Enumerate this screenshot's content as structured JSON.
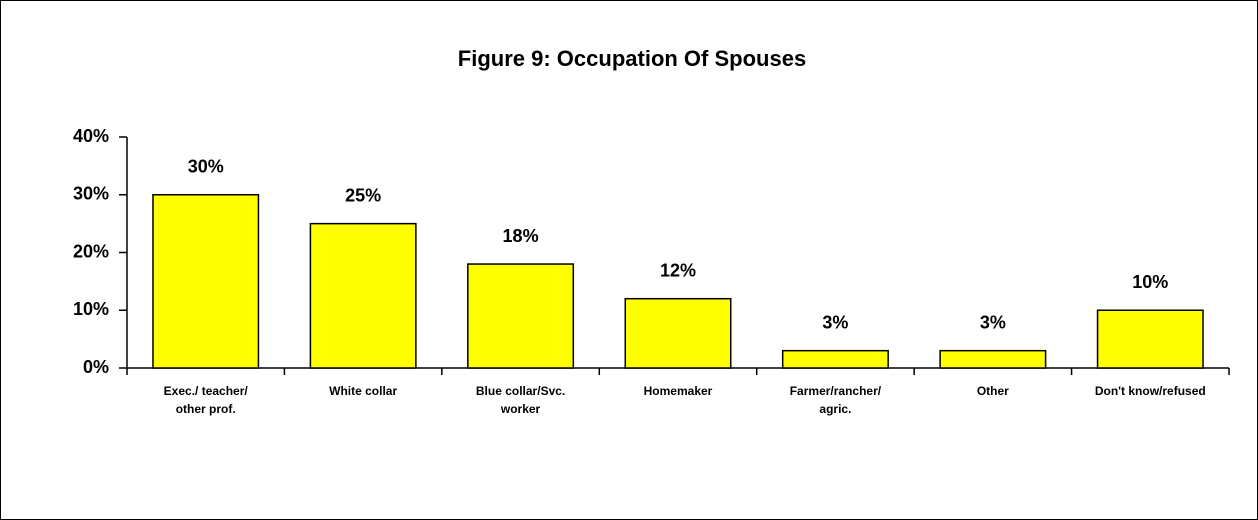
{
  "chart_data": {
    "type": "bar",
    "title": "Figure 9:   Occupation Of Spouses",
    "categories": [
      "Exec./ teacher/\nother prof.",
      "White collar",
      "Blue collar/Svc.\nworker",
      "Homemaker",
      "Farmer/rancher/\nagric.",
      "Other",
      "Don't know/refused"
    ],
    "values": [
      30,
      25,
      18,
      12,
      3,
      3,
      10
    ],
    "value_labels": [
      "30%",
      "25%",
      "18%",
      "12%",
      "3%",
      "3%",
      "10%"
    ],
    "color": "#ffff00",
    "ylim": [
      0,
      40
    ],
    "yticks": [
      {
        "value": 0,
        "label": "0%"
      },
      {
        "value": 10,
        "label": "10%"
      },
      {
        "value": 20,
        "label": "20%"
      },
      {
        "value": 30,
        "label": "30%"
      },
      {
        "value": 40,
        "label": "40%"
      }
    ],
    "grid": false
  }
}
